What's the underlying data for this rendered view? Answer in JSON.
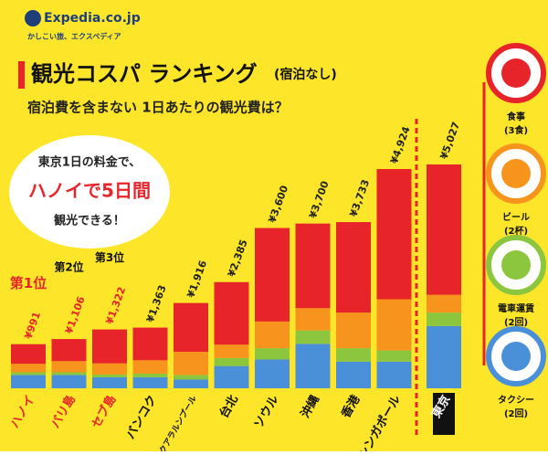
{
  "logo": {
    "brand": "Expedia.co.jp",
    "tagline": "かしこい旅、エクスペディア"
  },
  "chart_data": {
    "type": "stacked_bar",
    "title": "観光コスパ ランキング",
    "title_note": "(宿泊なし)",
    "subtitle": "宿泊費を含まない 1日あたりの観光費は？",
    "callout": [
      "東京1日の料金で、",
      "ハノイで5日間",
      "観光できる！"
    ],
    "ranks": [
      "第1位",
      "第2位",
      "第3位"
    ],
    "categories": [
      "ハノイ",
      "バリ島",
      "セブ島",
      "バンコク",
      "クアラルンプール",
      "台北",
      "ソウル",
      "沖縄",
      "香港",
      "シンガポール",
      "東京"
    ],
    "totals": {
      "values": [
        991,
        1106,
        1322,
        1363,
        1916,
        2385,
        3600,
        3700,
        3733,
        4924,
        5027
      ],
      "value_labels": [
        "¥991",
        "¥1,106",
        "¥1,322",
        "¥1,363",
        "¥1,916",
        "¥2,385",
        "¥3,600",
        "¥3,700",
        "¥3,733",
        "¥4,924",
        "¥5,027"
      ]
    },
    "series": [
      {
        "name": "タクシー",
        "detail": "(2回)",
        "color": "#4a90d9",
        "values": [
          300,
          300,
          250,
          250,
          200,
          500,
          650,
          1000,
          600,
          600,
          1400
        ]
      },
      {
        "name": "電車運賃",
        "detail": "(2回)",
        "color": "#8cc63f",
        "values": [
          60,
          60,
          60,
          80,
          100,
          180,
          250,
          300,
          300,
          250,
          300
        ]
      },
      {
        "name": "ビール",
        "detail": "(2杯)",
        "color": "#f7941d",
        "values": [
          190,
          250,
          250,
          300,
          520,
          300,
          600,
          500,
          800,
          1150,
          400
        ]
      },
      {
        "name": "食事",
        "detail": "(3食)",
        "color": "#e8242b",
        "values": [
          441,
          496,
          762,
          733,
          1096,
          1405,
          2100,
          1900,
          2033,
          2924,
          2927
        ]
      }
    ]
  }
}
